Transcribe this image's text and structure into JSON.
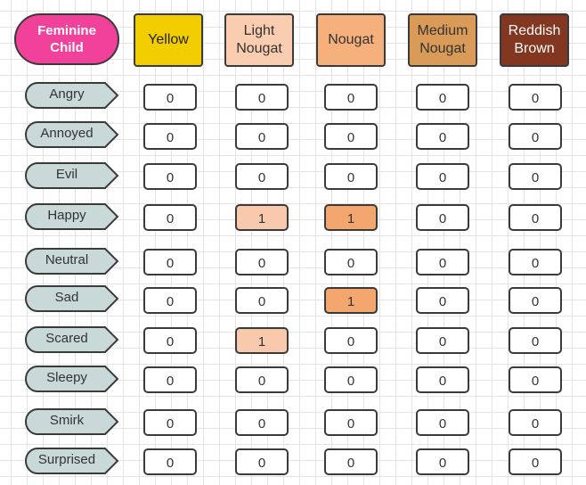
{
  "title": "Feminine\nChild",
  "colors": {
    "title_fill": "#f2419a",
    "row_label_fill": "#c9d9d7",
    "light_nougat_highlight": "#f9c9ad",
    "nougat_highlight": "#f4a66f"
  },
  "columns": [
    {
      "label": "Yellow",
      "color": "#f2cd00"
    },
    {
      "label": "Light\nNougat",
      "color": "#fbcdb0"
    },
    {
      "label": "Nougat",
      "color": "#f6b07c"
    },
    {
      "label": "Medium\nNougat",
      "color": "#da9a58"
    },
    {
      "label": "Reddish\nBrown",
      "color": "#833620"
    }
  ],
  "rows": [
    {
      "label": "Angry",
      "values": [
        0,
        0,
        0,
        0,
        0
      ]
    },
    {
      "label": "Annoyed",
      "values": [
        0,
        0,
        0,
        0,
        0
      ]
    },
    {
      "label": "Evil",
      "values": [
        0,
        0,
        0,
        0,
        0
      ]
    },
    {
      "label": "Happy",
      "values": [
        0,
        1,
        1,
        0,
        0
      ]
    },
    {
      "label": "Neutral",
      "values": [
        0,
        0,
        0,
        0,
        0
      ]
    },
    {
      "label": "Sad",
      "values": [
        0,
        0,
        1,
        0,
        0
      ]
    },
    {
      "label": "Scared",
      "values": [
        0,
        1,
        0,
        0,
        0
      ]
    },
    {
      "label": "Sleepy",
      "values": [
        0,
        0,
        0,
        0,
        0
      ]
    },
    {
      "label": "Smirk",
      "values": [
        0,
        0,
        0,
        0,
        0
      ]
    },
    {
      "label": "Surprised",
      "values": [
        0,
        0,
        0,
        0,
        0
      ]
    }
  ]
}
